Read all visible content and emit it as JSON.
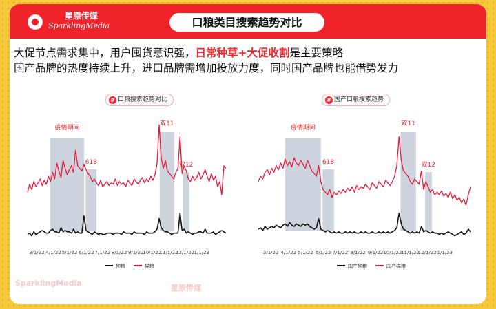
{
  "brand": {
    "name_cn": "星原传媒",
    "name_en": "SparklingMedia"
  },
  "title": "口粮类目搜索趋势对比",
  "subtitle": {
    "line1_pre": "大促节点需求集中，用户囤货意识强，",
    "line1_highlight": "日常种草+大促收割",
    "line1_post": "是主要策略",
    "line2": "国产品牌的热度持续上升，进口品牌需增加投放力度，同时国产品牌也能借势发力"
  },
  "colors": {
    "accent": "#f0232b",
    "highlight_box": "#c5ccd8",
    "series_dog": "#111111",
    "series_cat": "#e6173a"
  },
  "chart_data": [
    {
      "type": "line",
      "title": "口粮搜索趋势对比",
      "x_ticks": [
        "3/1/22",
        "4/1/22",
        "5/1/22",
        "6/1/22",
        "7/1/22",
        "8/1/22",
        "9/1/22",
        "10/1/22",
        "11/1/22",
        "12/1/22",
        "1/1/23"
      ],
      "x_range": [
        "2022-02-12",
        "2023-02-15"
      ],
      "y_range": [
        0,
        100
      ],
      "grid": false,
      "legend_position": "bottom",
      "annotations": [
        {
          "label": "疫情期间",
          "start": "2022-03-26",
          "end": "2022-05-28"
        },
        {
          "label": "618",
          "start": "2022-05-31",
          "end": "2022-06-20"
        },
        {
          "label": "双11",
          "start": "2022-10-15",
          "end": "2022-11-11"
        },
        {
          "label": "双12",
          "start": "2022-11-27",
          "end": "2022-12-09"
        }
      ],
      "series": [
        {
          "name": "狗粮",
          "values": [
            8,
            9,
            7,
            10,
            8,
            9,
            10,
            11,
            10,
            9,
            9,
            11,
            12,
            10,
            10,
            9,
            13,
            10,
            11,
            10,
            10,
            9,
            12,
            9,
            10,
            9,
            9,
            22,
            11,
            10,
            9,
            8,
            10,
            9,
            8,
            9,
            8,
            8,
            9,
            9,
            9,
            8,
            9,
            9,
            9,
            8,
            10,
            9,
            9,
            9,
            8,
            10,
            9,
            9,
            9,
            9,
            8,
            10,
            9,
            9,
            9,
            10,
            12,
            20,
            13,
            11,
            10,
            10,
            9,
            8,
            9,
            9,
            9,
            24,
            11,
            12,
            9,
            10,
            9,
            8,
            9,
            9,
            10,
            10,
            9,
            12,
            9,
            9,
            9,
            10,
            8,
            9,
            10,
            11,
            10,
            9
          ]
        },
        {
          "name": "猫粮",
          "values": [
            40,
            46,
            42,
            48,
            44,
            47,
            50,
            45,
            49,
            46,
            52,
            48,
            55,
            50,
            62,
            56,
            51,
            64,
            58,
            53,
            57,
            60,
            55,
            72,
            60,
            58,
            56,
            61,
            57,
            54,
            52,
            48,
            50,
            47,
            45,
            49,
            44,
            46,
            48,
            45,
            47,
            46,
            50,
            45,
            48,
            46,
            47,
            44,
            49,
            47,
            45,
            50,
            48,
            46,
            49,
            51,
            47,
            50,
            48,
            52,
            49,
            53,
            62,
            91,
            66,
            58,
            64,
            56,
            54,
            52,
            50,
            55,
            58,
            82,
            54,
            60,
            56,
            50,
            48,
            52,
            49,
            51,
            55,
            50,
            53,
            57,
            52,
            48,
            54,
            49,
            52,
            44,
            48,
            38,
            60,
            58
          ]
        }
      ]
    },
    {
      "type": "line",
      "title": "国产口粮搜索趋势",
      "x_ticks": [
        "3/1/22",
        "4/1/22",
        "5/1/22",
        "6/1/22",
        "7/1/22",
        "8/1/22",
        "9/1/22",
        "10/1/22",
        "11/1/22",
        "12/1/22",
        "1/1/23"
      ],
      "x_range": [
        "2022-02-07",
        "2023-02-15"
      ],
      "y_range": [
        0,
        100
      ],
      "grid": false,
      "legend_position": "bottom",
      "annotations": [
        {
          "label": "疫情期间",
          "start": "2022-03-26",
          "end": "2022-05-28"
        },
        {
          "label": "618",
          "start": "2022-05-31",
          "end": "2022-06-20"
        },
        {
          "label": "双11",
          "start": "2022-10-15",
          "end": "2022-11-11"
        },
        {
          "label": "双12",
          "start": "2022-11-27",
          "end": "2022-12-09"
        }
      ],
      "series": [
        {
          "name": "国产狗粮",
          "values": [
            12,
            13,
            11,
            14,
            12,
            13,
            14,
            13,
            15,
            14,
            13,
            15,
            16,
            14,
            17,
            15,
            14,
            16,
            15,
            14,
            16,
            15,
            16,
            14,
            13,
            12,
            13,
            20,
            12,
            11,
            10,
            11,
            10,
            9,
            10,
            9,
            10,
            9,
            9,
            10,
            9,
            10,
            9,
            10,
            9,
            9,
            10,
            9,
            10,
            9,
            9,
            10,
            9,
            9,
            10,
            9,
            10,
            9,
            10,
            9,
            10,
            11,
            13,
            24,
            16,
            12,
            11,
            10,
            9,
            10,
            9,
            10,
            9,
            14,
            10,
            11,
            10,
            9,
            10,
            9,
            9,
            8,
            9,
            8,
            9,
            10,
            9,
            8,
            7,
            8,
            9,
            10,
            8,
            9,
            12,
            10
          ]
        },
        {
          "name": "国产猫粮",
          "values": [
            48,
            52,
            50,
            55,
            57,
            53,
            58,
            55,
            60,
            57,
            62,
            58,
            65,
            60,
            63,
            59,
            66,
            62,
            60,
            64,
            61,
            58,
            64,
            60,
            56,
            54,
            52,
            60,
            48,
            42,
            40,
            38,
            42,
            36,
            40,
            38,
            41,
            39,
            42,
            40,
            43,
            41,
            44,
            40,
            45,
            42,
            44,
            43,
            46,
            44,
            42,
            47,
            45,
            43,
            48,
            46,
            44,
            49,
            47,
            45,
            48,
            52,
            60,
            82,
            64,
            56,
            54,
            52,
            48,
            46,
            50,
            48,
            46,
            56,
            42,
            48,
            44,
            40,
            42,
            38,
            40,
            38,
            41,
            37,
            39,
            36,
            40,
            35,
            38,
            34,
            36,
            32,
            35,
            30,
            38,
            44
          ]
        }
      ]
    }
  ]
}
